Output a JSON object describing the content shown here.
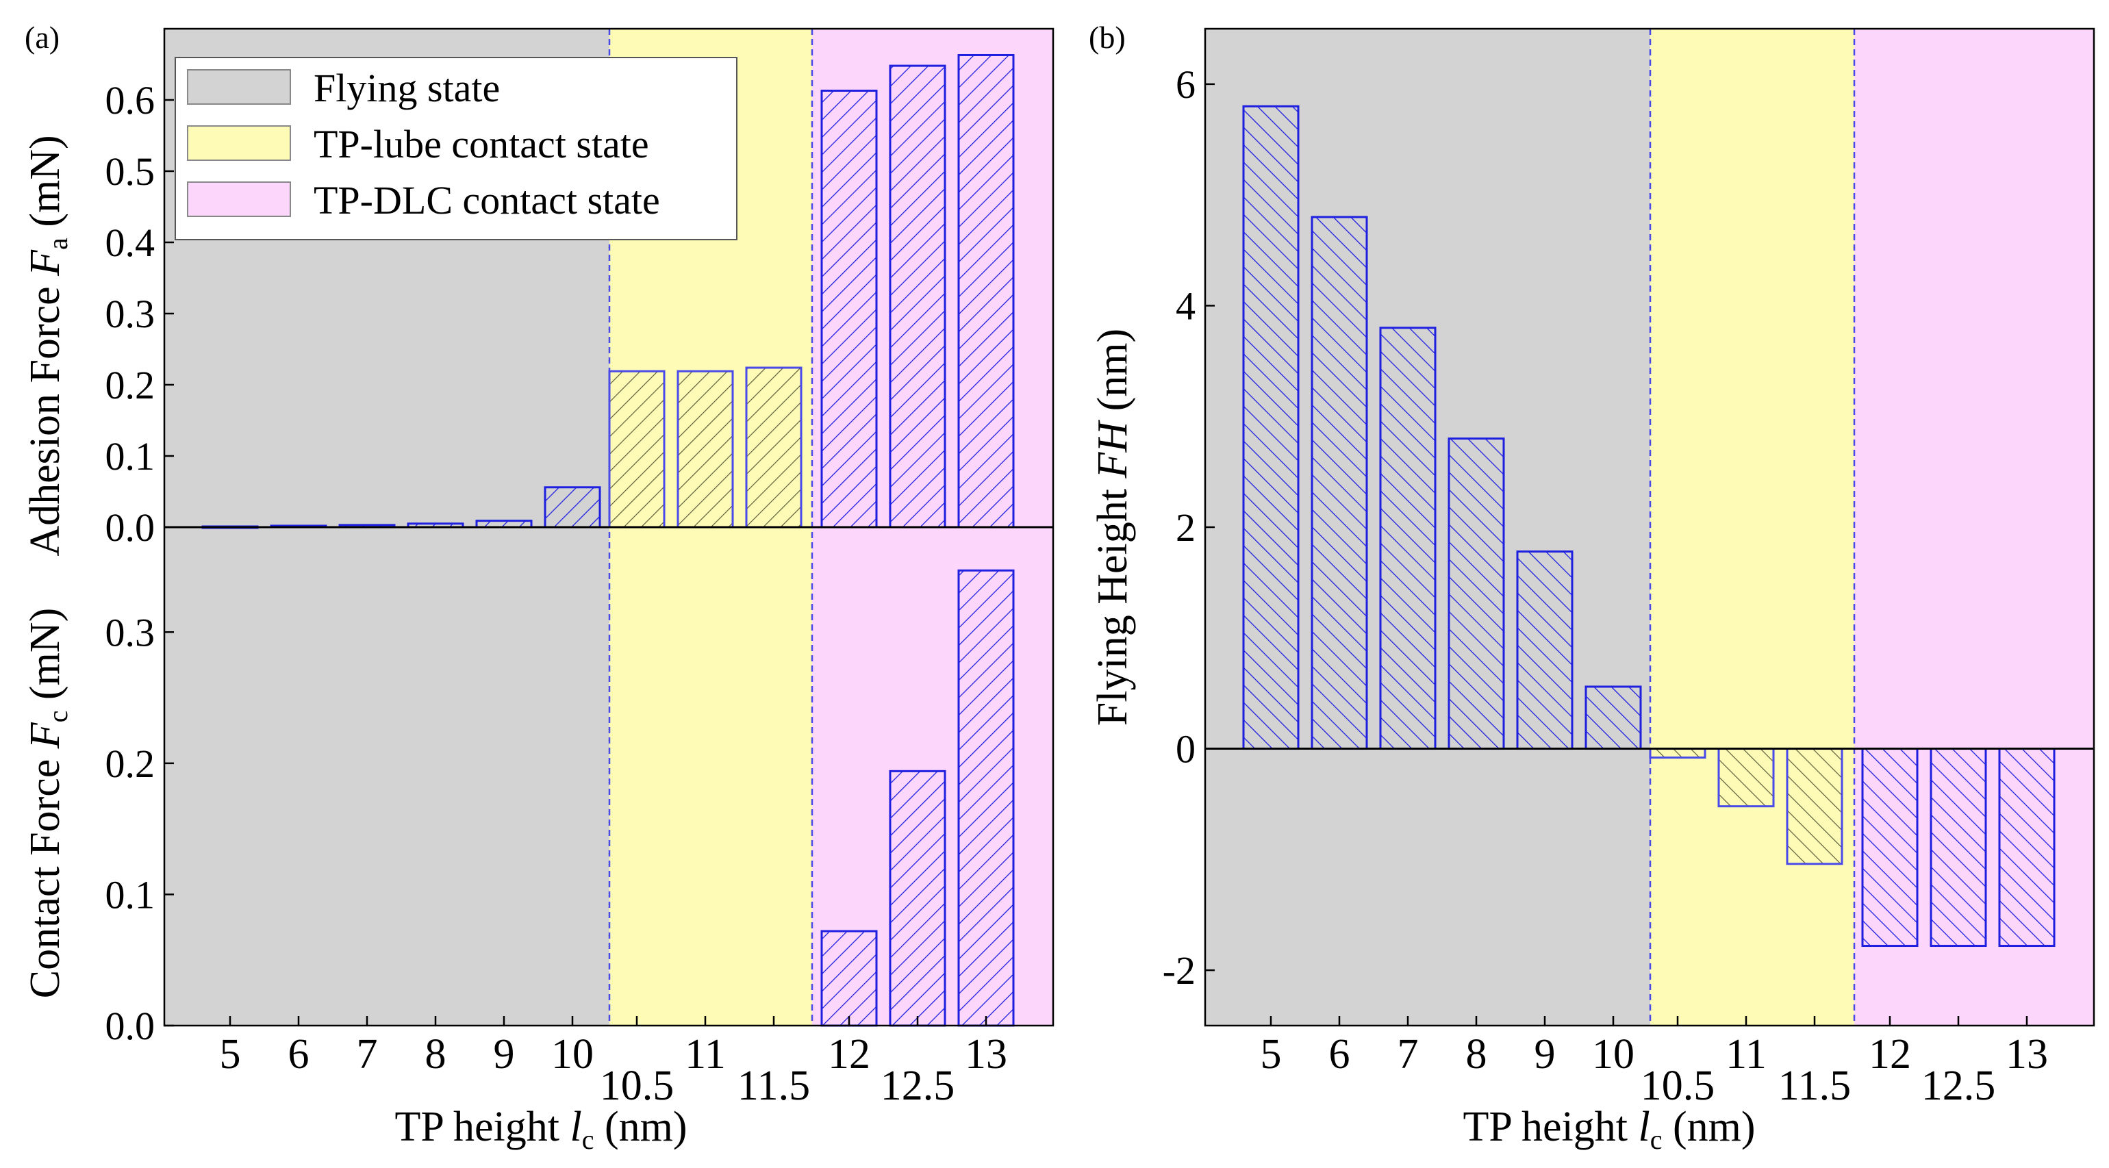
{
  "figure": {
    "panel_a_label": "(a)",
    "panel_b_label": "(b)"
  },
  "colors": {
    "flying": "#d3d3d3",
    "lube": "#fdfbb6",
    "dlc": "#fcd6fb",
    "bar_stroke": "#1f1fe0",
    "lube_bar_stroke": "#6b6b2a",
    "divider": "#4a4ae8"
  },
  "legend": {
    "flying": "Flying state",
    "lube": "TP-lube contact state",
    "dlc": "TP-DLC contact state"
  },
  "axis_labels": {
    "a_top_y_main": "Adhesion Force ",
    "a_top_y_sym": "F",
    "a_top_y_sub": "a",
    "a_top_y_unit": " (mN)",
    "a_bot_y_main": "Contact Force ",
    "a_bot_y_sym": "F",
    "a_bot_y_sub": "c",
    "a_bot_y_unit": " (mN)",
    "x_main": "TP height ",
    "x_sym": "l",
    "x_sub": "c",
    "x_unit": " (nm)",
    "b_y_main": "Flying Height ",
    "b_y_sym": "FH",
    "b_y_unit": " (nm)"
  },
  "chart_data": [
    {
      "type": "bar",
      "id": "adhesion",
      "title": "",
      "xlabel": "TP height lc (nm)",
      "ylabel": "Adhesion Force Fa (mN)",
      "categories": [
        "5",
        "6",
        "7",
        "8",
        "9",
        "10",
        "10.5",
        "11",
        "11.5",
        "12",
        "12.5",
        "13"
      ],
      "values": [
        0.001,
        0.002,
        0.003,
        0.005,
        0.009,
        0.056,
        0.219,
        0.219,
        0.224,
        0.613,
        0.648,
        0.663
      ],
      "states": [
        "flying",
        "flying",
        "flying",
        "flying",
        "flying",
        "flying",
        "lube",
        "lube",
        "lube",
        "dlc",
        "dlc",
        "dlc"
      ],
      "ylim": [
        0,
        0.7
      ],
      "yticks": [
        "0.0",
        "0.1",
        "0.2",
        "0.3",
        "0.4",
        "0.5",
        "0.6"
      ],
      "hatch": "forward"
    },
    {
      "type": "bar",
      "id": "contact",
      "title": "",
      "xlabel": "TP height lc (nm)",
      "ylabel": "Contact Force Fc (mN)",
      "categories": [
        "5",
        "6",
        "7",
        "8",
        "9",
        "10",
        "10.5",
        "11",
        "11.5",
        "12",
        "12.5",
        "13"
      ],
      "values": [
        0,
        0,
        0,
        0,
        0,
        0,
        0,
        0,
        0,
        0.072,
        0.194,
        0.347
      ],
      "states": [
        "flying",
        "flying",
        "flying",
        "flying",
        "flying",
        "flying",
        "lube",
        "lube",
        "lube",
        "dlc",
        "dlc",
        "dlc"
      ],
      "ylim": [
        0,
        0.38
      ],
      "yticks": [
        "0.0",
        "0.1",
        "0.2",
        "0.3"
      ],
      "hatch": "forward"
    },
    {
      "type": "bar",
      "id": "flying_height",
      "title": "",
      "xlabel": "TP height lc (nm)",
      "ylabel": "Flying Height FH (nm)",
      "categories": [
        "5",
        "6",
        "7",
        "8",
        "9",
        "10",
        "10.5",
        "11",
        "11.5",
        "12",
        "12.5",
        "13"
      ],
      "values": [
        5.8,
        4.8,
        3.8,
        2.8,
        1.78,
        0.56,
        -0.08,
        -0.52,
        -1.04,
        -1.78,
        -1.78,
        -1.78
      ],
      "states": [
        "flying",
        "flying",
        "flying",
        "flying",
        "flying",
        "flying",
        "lube",
        "lube",
        "lube",
        "dlc",
        "dlc",
        "dlc"
      ],
      "ylim": [
        -2.5,
        6.5
      ],
      "yticks": [
        "-2",
        "0",
        "2",
        "4",
        "6"
      ],
      "hatch": "backward"
    }
  ]
}
